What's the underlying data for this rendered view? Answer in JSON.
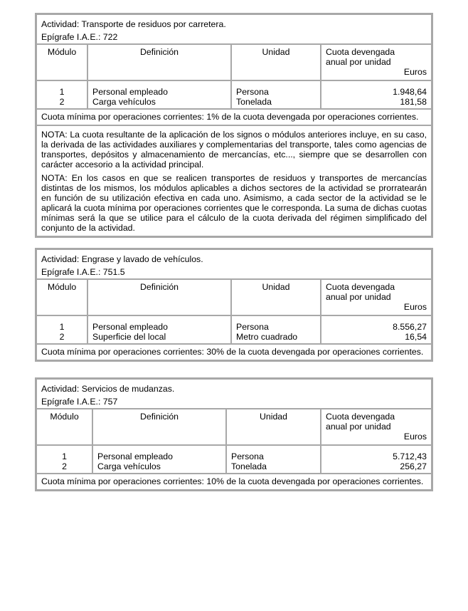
{
  "headers": {
    "modulo": "Módulo",
    "definicion": "Definición",
    "unidad": "Unidad",
    "cuota": "Cuota devengada anual por unidad",
    "euros": "Euros"
  },
  "tables": [
    {
      "actividad": "Actividad: Transporte de residuos por carretera.",
      "epigrafe": "Epígrafe I.A.E.: 722",
      "rows": [
        {
          "modulo": "1",
          "definicion": "Personal empleado",
          "unidad": "Persona",
          "cuota": "1.948,64"
        },
        {
          "modulo": "2",
          "definicion": "Carga vehículos",
          "unidad": "Tonelada",
          "cuota": "181,58"
        }
      ],
      "cuota_minima": "Cuota mínima por operaciones corrientes: 1% de la cuota devengada por operaciones corrientes.",
      "notas": [
        "NOTA: La cuota resultante de la aplicación de los signos o módulos anteriores incluye, en su caso, la derivada de las actividades auxiliares y complementarias del transporte, tales como agencias de transportes, depósitos y almacenamiento de mercancías, etc..., siempre que se desarrollen con carácter accesorio a la actividad principal.",
        "NOTA: En los casos en que se realicen transportes de residuos y transportes de mercancías distintas de los mismos, los módulos aplicables a dichos sectores de la actividad se prorratearán en función de su utilización efectiva en cada uno. Asimismo, a cada sector de la actividad se le aplicará la cuota mínima por operaciones corrientes que le corresponda. La suma de dichas cuotas mínimas será la que se utilice para el cálculo de la cuota derivada del régimen simplificado del conjunto de la actividad."
      ]
    },
    {
      "actividad": "Actividad: Engrase y lavado de vehículos.",
      "epigrafe": "Epígrafe I.A.E.: 751.5",
      "rows": [
        {
          "modulo": "1",
          "definicion": "Personal empleado",
          "unidad": "Persona",
          "cuota": "8.556,27"
        },
        {
          "modulo": "2",
          "definicion": "Superficie del local",
          "unidad": "Metro cuadrado",
          "cuota": "16,54"
        }
      ],
      "cuota_minima": "Cuota mínima por operaciones corrientes: 30% de la cuota devengada por operaciones corrientes."
    },
    {
      "actividad": "Actividad: Servicios de mudanzas.",
      "epigrafe": "Epígrafe I.A.E.: 757",
      "rows": [
        {
          "modulo": "1",
          "definicion": "Personal empleado",
          "unidad": "Persona",
          "cuota": "5.712,43"
        },
        {
          "modulo": "2",
          "definicion": "Carga vehículos",
          "unidad": "Tonelada",
          "cuota": "256,27"
        }
      ],
      "cuota_minima": "Cuota mínima por operaciones corrientes: 10% de la cuota devengada por operaciones corrientes."
    }
  ]
}
